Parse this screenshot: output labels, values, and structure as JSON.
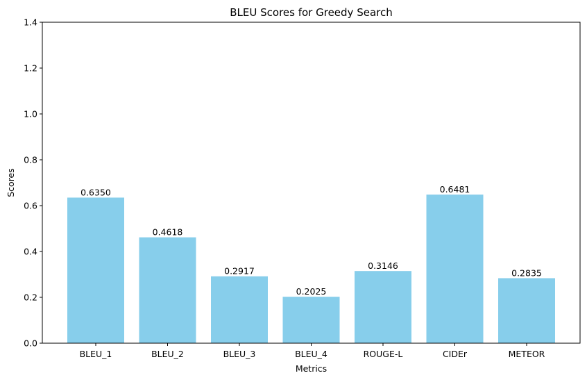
{
  "chart_data": {
    "type": "bar",
    "title": "BLEU Scores for Greedy Search",
    "xlabel": "Metrics",
    "ylabel": "Scores",
    "categories": [
      "BLEU_1",
      "BLEU_2",
      "BLEU_3",
      "BLEU_4",
      "ROUGE-L",
      "CIDEr",
      "METEOR"
    ],
    "values": [
      0.635,
      0.4618,
      0.2917,
      0.2025,
      0.3146,
      0.6481,
      0.2835
    ],
    "value_labels": [
      "0.6350",
      "0.4618",
      "0.2917",
      "0.2025",
      "0.3146",
      "0.6481",
      "0.2835"
    ],
    "ylim": [
      0,
      1.4
    ],
    "yticks": [
      0.0,
      0.2,
      0.4,
      0.6,
      0.8,
      1.0,
      1.2,
      1.4
    ],
    "ytick_labels": [
      "0.0",
      "0.2",
      "0.4",
      "0.6",
      "0.8",
      "1.0",
      "1.2",
      "1.4"
    ],
    "grid": false,
    "bar_color": "#87CEEB"
  }
}
